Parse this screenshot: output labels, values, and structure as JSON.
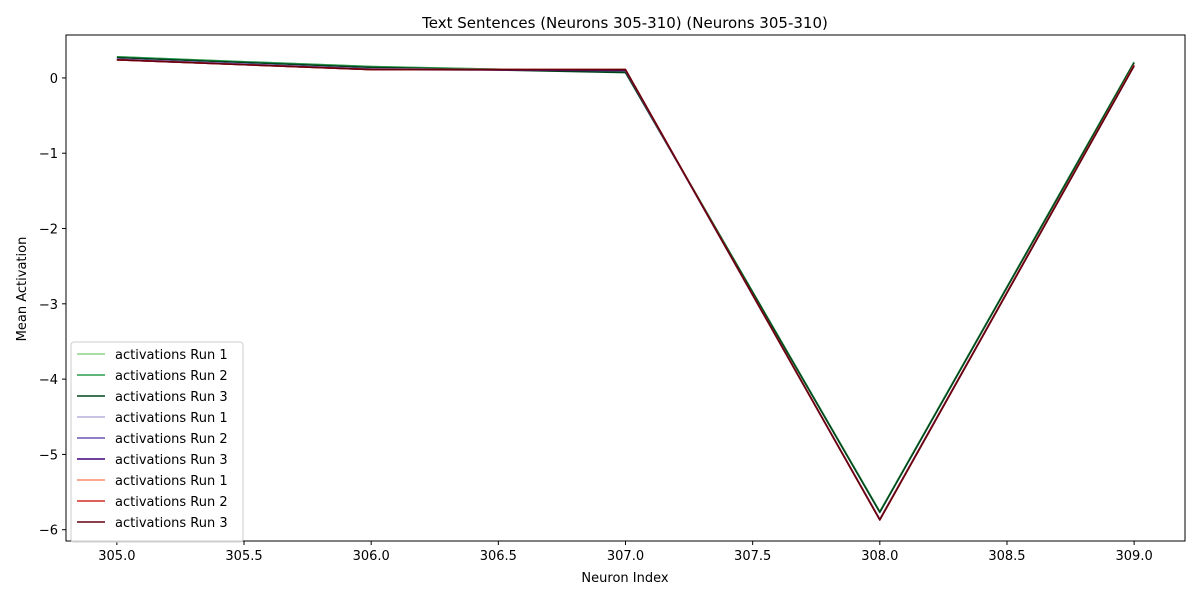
{
  "chart_data": {
    "type": "line",
    "title": "Text Sentences (Neurons 305-310) (Neurons 305-310)",
    "xlabel": "Neuron Index",
    "ylabel": "Mean Activation",
    "x": [
      305,
      306,
      307,
      308,
      309
    ],
    "xlim": [
      304.8,
      309.2
    ],
    "ylim": [
      -6.15,
      0.57
    ],
    "xticks": [
      305.0,
      305.5,
      306.0,
      306.5,
      307.0,
      307.5,
      308.0,
      308.5,
      309.0
    ],
    "xtick_labels": [
      "305.0",
      "305.5",
      "306.0",
      "306.5",
      "307.0",
      "307.5",
      "308.0",
      "308.5",
      "309.0"
    ],
    "yticks": [
      0,
      -1,
      -2,
      -3,
      -4,
      -5,
      -6
    ],
    "ytick_labels": [
      "0",
      "−1",
      "−2",
      "−3",
      "−4",
      "−5",
      "−6"
    ],
    "grid": false,
    "legend_position": "lower-left",
    "series": [
      {
        "name": "activations Run 1",
        "color": "#8fd28a",
        "values": [
          0.28,
          0.15,
          0.08,
          -5.76,
          0.21
        ]
      },
      {
        "name": "activations Run 2",
        "color": "#2b9b4f",
        "values": [
          0.28,
          0.15,
          0.08,
          -5.76,
          0.21
        ]
      },
      {
        "name": "activations Run 3",
        "color": "#00441b",
        "values": [
          0.27,
          0.14,
          0.07,
          -5.77,
          0.2
        ]
      },
      {
        "name": "activations Run 1",
        "color": "#b6b0dc",
        "values": [
          0.25,
          0.12,
          0.1,
          -5.86,
          0.17
        ]
      },
      {
        "name": "activations Run 2",
        "color": "#6a57b2",
        "values": [
          0.25,
          0.12,
          0.1,
          -5.86,
          0.17
        ]
      },
      {
        "name": "activations Run 3",
        "color": "#3f007d",
        "values": [
          0.24,
          0.11,
          0.1,
          -5.87,
          0.16
        ]
      },
      {
        "name": "activations Run 1",
        "color": "#fb8a6a",
        "values": [
          0.24,
          0.11,
          0.11,
          -5.87,
          0.17
        ]
      },
      {
        "name": "activations Run 2",
        "color": "#d62b25",
        "values": [
          0.24,
          0.11,
          0.11,
          -5.87,
          0.17
        ]
      },
      {
        "name": "activations Run 3",
        "color": "#67000d",
        "values": [
          0.24,
          0.11,
          0.11,
          -5.87,
          0.16
        ]
      }
    ]
  }
}
